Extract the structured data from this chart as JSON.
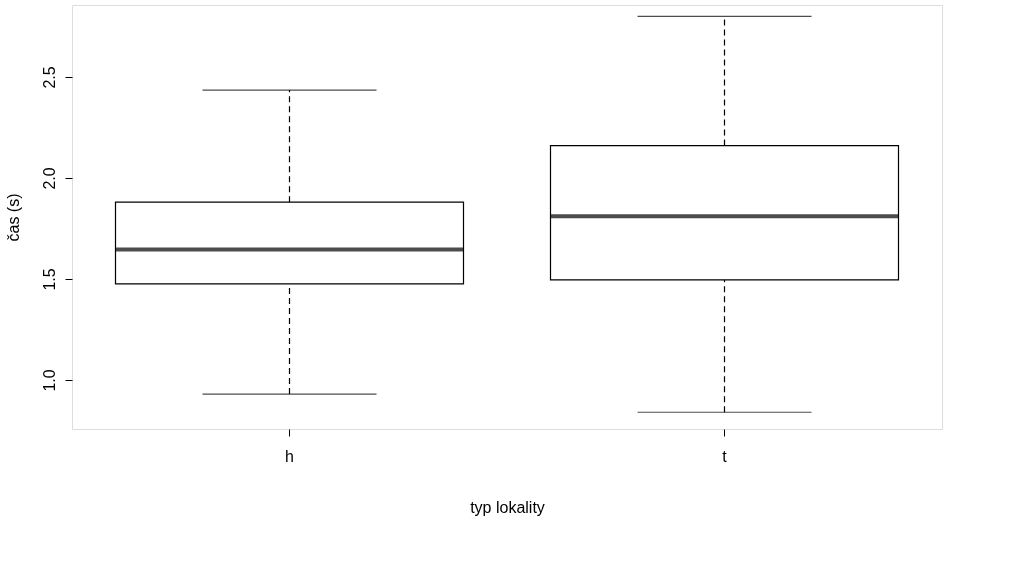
{
  "chart_data": {
    "type": "box",
    "xlabel": "typ lokality",
    "ylabel": "čas (s)",
    "categories": [
      "h",
      "t"
    ],
    "boxes": [
      {
        "low": 0.93,
        "q1": 1.475,
        "median": 1.645,
        "q3": 1.88,
        "high": 2.435
      },
      {
        "low": 0.84,
        "q1": 1.495,
        "median": 1.81,
        "q3": 2.16,
        "high": 2.8
      }
    ],
    "ylim": [
      0.757,
      2.856
    ],
    "yticks": [
      {
        "value": 1.0,
        "label": "1.0"
      },
      {
        "value": 1.5,
        "label": "1.5"
      },
      {
        "value": 2.0,
        "label": "2.0"
      },
      {
        "value": 2.5,
        "label": "2.5"
      }
    ],
    "grid": false
  }
}
